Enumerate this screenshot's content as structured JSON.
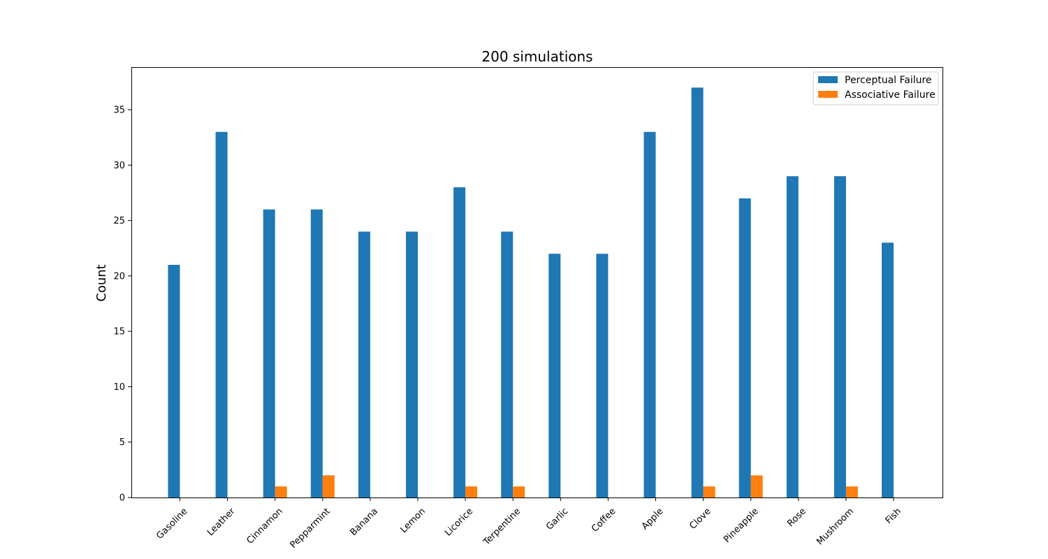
{
  "chart_data": {
    "type": "bar",
    "title": "200 simulations",
    "xlabel": "",
    "ylabel": "Count",
    "ylim": [
      0,
      38.85
    ],
    "yticks": [
      0,
      5,
      10,
      15,
      20,
      25,
      30,
      35
    ],
    "categories": [
      "Gasoline",
      "Leather",
      "Cinnamon",
      "Pepparmint",
      "Banana",
      "Lemon",
      "Licorice",
      "Terpentine",
      "Garlic",
      "Coffee",
      "Apple",
      "Clove",
      "Pineapple",
      "Rose",
      "Mushroom",
      "Fish"
    ],
    "series": [
      {
        "name": "Perceptual Failure",
        "color": "#1f77b4",
        "values": [
          21,
          33,
          26,
          26,
          24,
          24,
          28,
          24,
          22,
          22,
          33,
          37,
          27,
          29,
          29,
          23
        ]
      },
      {
        "name": "Associative Failure",
        "color": "#ff7f0e",
        "values": [
          0,
          0,
          1,
          2,
          0,
          0,
          1,
          1,
          0,
          0,
          0,
          1,
          2,
          0,
          1,
          0
        ]
      }
    ],
    "legend": "top-right",
    "grid": false
  }
}
